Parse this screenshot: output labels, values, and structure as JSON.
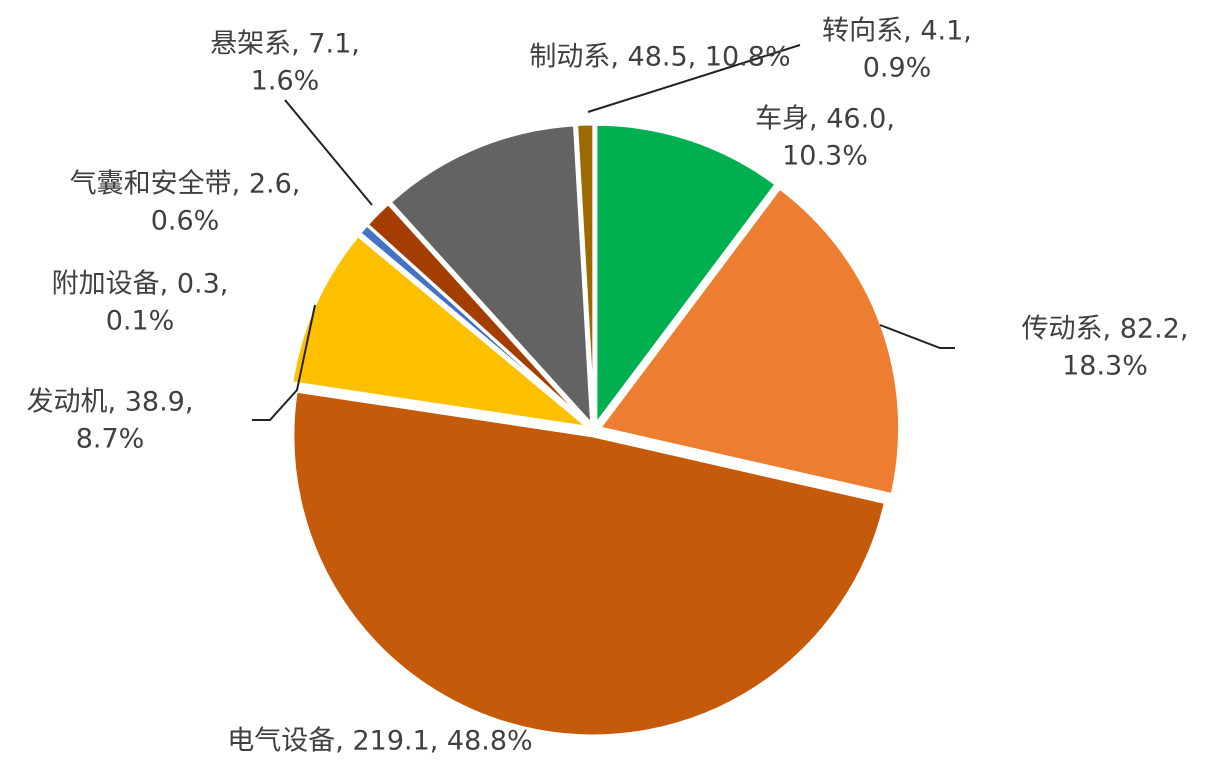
{
  "chart_data": {
    "type": "pie",
    "labels": [
      [
        "车身, 46.0,",
        "10.3%"
      ],
      [
        "传动系, 82.2,",
        "18.3%"
      ],
      [
        "电气设备, 219.1, 48.8%"
      ],
      [
        "发动机, 38.9,",
        "8.7%"
      ],
      [
        "附加设备, 0.3,",
        "0.1%"
      ],
      [
        "气囊和安全带, 2.6,",
        "0.6%"
      ],
      [
        "悬架系, 7.1,",
        "1.6%"
      ],
      [
        "制动系, 48.5, 10.8%"
      ],
      [
        "转向系, 4.1,",
        "0.9%"
      ]
    ],
    "values": [
      46.0,
      82.2,
      219.1,
      38.9,
      0.3,
      2.6,
      7.1,
      48.5,
      4.1
    ],
    "colors": [
      "#00b050",
      "#ed7d31",
      "#c55a0b",
      "#ffc000",
      "#2e5aa8",
      "#4472c4",
      "#a33d00",
      "#636363",
      "#9c6a00"
    ]
  }
}
